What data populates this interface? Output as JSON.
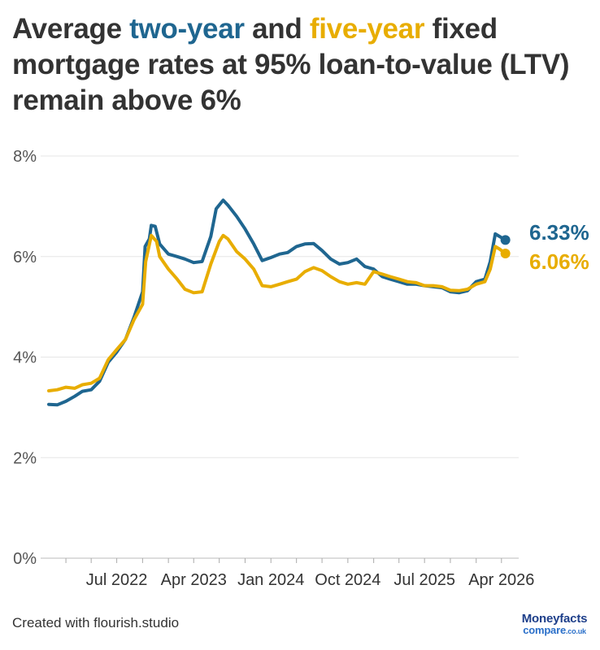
{
  "title": {
    "part1": "Average ",
    "two_year": "two-year",
    "part2": " and ",
    "five_year": "five-year",
    "part3": " fixed mortgage rates at 95% loan-to-value (LTV) remain above 6%"
  },
  "footer": {
    "credit": "Created with flourish.studio"
  },
  "logo": {
    "top": "Moneyfacts",
    "bottom": "compare",
    "suffix": ".co.uk"
  },
  "colors": {
    "two_year": "#1f6690",
    "five_year": "#e8ad00",
    "text": "#333333",
    "grid": "#e6e6e6"
  },
  "chart_data": {
    "type": "line",
    "title": "Average two-year and five-year fixed mortgage rates at 95% loan-to-value (LTV) remain above 6%",
    "xlabel": "",
    "ylabel": "",
    "ylim": [
      0,
      8
    ],
    "xlim": [
      "2021-11-01",
      "2026-05-15"
    ],
    "y_ticks": [
      "0%",
      "2%",
      "4%",
      "6%",
      "8%"
    ],
    "y_tick_values": [
      0,
      2,
      4,
      6,
      8
    ],
    "x_ticks": [
      {
        "date": "2022-07-01",
        "label": "Jul 2022"
      },
      {
        "date": "2023-04-01",
        "label": "Apr 2023"
      },
      {
        "date": "2024-01-01",
        "label": "Jan 2024"
      },
      {
        "date": "2024-10-01",
        "label": "Oct 2024"
      },
      {
        "date": "2025-07-01",
        "label": "Jul 2025"
      },
      {
        "date": "2026-04-01",
        "label": "Apr 2026"
      }
    ],
    "grid": true,
    "legend": "none",
    "series": [
      {
        "name": "two-year",
        "color": "#1f6690",
        "end_label": "6.33%",
        "points": [
          [
            "2021-11-01",
            3.06
          ],
          [
            "2021-12-01",
            3.05
          ],
          [
            "2022-01-01",
            3.12
          ],
          [
            "2022-02-01",
            3.22
          ],
          [
            "2022-03-01",
            3.32
          ],
          [
            "2022-04-01",
            3.35
          ],
          [
            "2022-05-01",
            3.52
          ],
          [
            "2022-06-01",
            3.9
          ],
          [
            "2022-07-01",
            4.1
          ],
          [
            "2022-08-01",
            4.35
          ],
          [
            "2022-09-01",
            4.8
          ],
          [
            "2022-10-01",
            5.3
          ],
          [
            "2022-10-10",
            6.2
          ],
          [
            "2022-10-25",
            6.35
          ],
          [
            "2022-11-01",
            6.62
          ],
          [
            "2022-11-15",
            6.6
          ],
          [
            "2022-12-01",
            6.25
          ],
          [
            "2023-01-01",
            6.05
          ],
          [
            "2023-02-01",
            6.0
          ],
          [
            "2023-03-01",
            5.95
          ],
          [
            "2023-04-01",
            5.88
          ],
          [
            "2023-05-01",
            5.9
          ],
          [
            "2023-06-01",
            6.4
          ],
          [
            "2023-06-20",
            6.95
          ],
          [
            "2023-07-15",
            7.12
          ],
          [
            "2023-08-01",
            7.02
          ],
          [
            "2023-09-01",
            6.8
          ],
          [
            "2023-10-01",
            6.55
          ],
          [
            "2023-11-01",
            6.25
          ],
          [
            "2023-12-01",
            5.92
          ],
          [
            "2024-01-01",
            5.98
          ],
          [
            "2024-02-01",
            6.05
          ],
          [
            "2024-03-01",
            6.08
          ],
          [
            "2024-04-01",
            6.2
          ],
          [
            "2024-05-01",
            6.25
          ],
          [
            "2024-06-01",
            6.26
          ],
          [
            "2024-07-01",
            6.12
          ],
          [
            "2024-08-01",
            5.95
          ],
          [
            "2024-09-01",
            5.85
          ],
          [
            "2024-10-01",
            5.88
          ],
          [
            "2024-11-01",
            5.95
          ],
          [
            "2024-12-01",
            5.8
          ],
          [
            "2025-01-01",
            5.75
          ],
          [
            "2025-02-01",
            5.6
          ],
          [
            "2025-03-01",
            5.55
          ],
          [
            "2025-04-01",
            5.5
          ],
          [
            "2025-05-01",
            5.45
          ],
          [
            "2025-06-01",
            5.45
          ],
          [
            "2025-07-01",
            5.42
          ],
          [
            "2025-08-01",
            5.4
          ],
          [
            "2025-09-01",
            5.38
          ],
          [
            "2025-10-01",
            5.3
          ],
          [
            "2025-11-01",
            5.28
          ],
          [
            "2025-12-01",
            5.32
          ],
          [
            "2026-01-01",
            5.5
          ],
          [
            "2026-02-01",
            5.55
          ],
          [
            "2026-02-20",
            5.9
          ],
          [
            "2026-03-10",
            6.45
          ],
          [
            "2026-03-25",
            6.4
          ],
          [
            "2026-04-15",
            6.33
          ]
        ]
      },
      {
        "name": "five-year",
        "color": "#e8ad00",
        "end_label": "6.06%",
        "points": [
          [
            "2021-11-01",
            3.33
          ],
          [
            "2021-12-01",
            3.35
          ],
          [
            "2022-01-01",
            3.4
          ],
          [
            "2022-02-01",
            3.38
          ],
          [
            "2022-03-01",
            3.45
          ],
          [
            "2022-04-01",
            3.48
          ],
          [
            "2022-05-01",
            3.58
          ],
          [
            "2022-06-01",
            3.95
          ],
          [
            "2022-07-01",
            4.15
          ],
          [
            "2022-08-01",
            4.35
          ],
          [
            "2022-09-01",
            4.75
          ],
          [
            "2022-10-01",
            5.05
          ],
          [
            "2022-10-12",
            5.9
          ],
          [
            "2022-11-01",
            6.42
          ],
          [
            "2022-11-20",
            6.3
          ],
          [
            "2022-12-01",
            6.0
          ],
          [
            "2023-01-01",
            5.75
          ],
          [
            "2023-02-01",
            5.55
          ],
          [
            "2023-03-01",
            5.35
          ],
          [
            "2023-04-01",
            5.28
          ],
          [
            "2023-05-01",
            5.3
          ],
          [
            "2023-06-01",
            5.85
          ],
          [
            "2023-07-01",
            6.3
          ],
          [
            "2023-07-15",
            6.42
          ],
          [
            "2023-08-01",
            6.35
          ],
          [
            "2023-09-01",
            6.1
          ],
          [
            "2023-10-01",
            5.95
          ],
          [
            "2023-11-01",
            5.75
          ],
          [
            "2023-12-01",
            5.42
          ],
          [
            "2024-01-01",
            5.4
          ],
          [
            "2024-02-01",
            5.45
          ],
          [
            "2024-03-01",
            5.5
          ],
          [
            "2024-04-01",
            5.55
          ],
          [
            "2024-05-01",
            5.7
          ],
          [
            "2024-06-01",
            5.78
          ],
          [
            "2024-07-01",
            5.72
          ],
          [
            "2024-08-01",
            5.6
          ],
          [
            "2024-09-01",
            5.5
          ],
          [
            "2024-10-01",
            5.45
          ],
          [
            "2024-11-01",
            5.48
          ],
          [
            "2024-12-01",
            5.45
          ],
          [
            "2025-01-01",
            5.7
          ],
          [
            "2025-02-01",
            5.65
          ],
          [
            "2025-03-01",
            5.6
          ],
          [
            "2025-04-01",
            5.55
          ],
          [
            "2025-05-01",
            5.5
          ],
          [
            "2025-06-01",
            5.48
          ],
          [
            "2025-07-01",
            5.42
          ],
          [
            "2025-08-01",
            5.42
          ],
          [
            "2025-09-01",
            5.4
          ],
          [
            "2025-10-01",
            5.33
          ],
          [
            "2025-11-01",
            5.32
          ],
          [
            "2025-12-01",
            5.35
          ],
          [
            "2026-01-01",
            5.45
          ],
          [
            "2026-02-01",
            5.5
          ],
          [
            "2026-02-20",
            5.75
          ],
          [
            "2026-03-10",
            6.2
          ],
          [
            "2026-03-25",
            6.15
          ],
          [
            "2026-04-15",
            6.06
          ]
        ]
      }
    ]
  }
}
